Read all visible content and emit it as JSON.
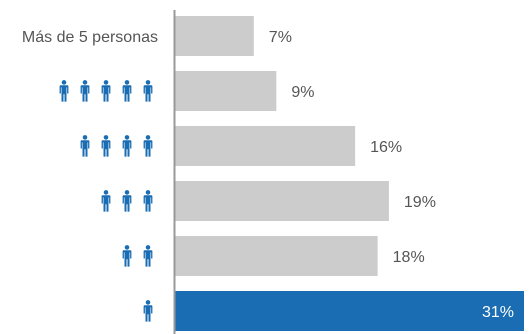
{
  "chart_data": {
    "type": "bar",
    "orientation": "horizontal",
    "categories": [
      "Más de 5 personas",
      "5 personas",
      "4 personas",
      "3 personas",
      "2 personas",
      "1 persona"
    ],
    "category_labels": [
      {
        "text": "Más de 5 personas"
      },
      {
        "icon": "person-icon",
        "count": 5
      },
      {
        "icon": "person-icon",
        "count": 4
      },
      {
        "icon": "person-icon",
        "count": 3
      },
      {
        "icon": "person-icon",
        "count": 2
      },
      {
        "icon": "person-icon",
        "count": 1
      }
    ],
    "values": [
      7,
      9,
      16,
      19,
      18,
      31
    ],
    "value_labels": [
      "7%",
      "9%",
      "16%",
      "19%",
      "18%",
      "31%"
    ],
    "xlim": [
      0,
      31
    ],
    "highlight_index": 5,
    "colors": {
      "bar": "#cccccc",
      "highlight": "#1a6db3",
      "icon": "#1a6db3",
      "axis": "#999999",
      "text": "#555555"
    },
    "grid": false,
    "legend": "none"
  }
}
